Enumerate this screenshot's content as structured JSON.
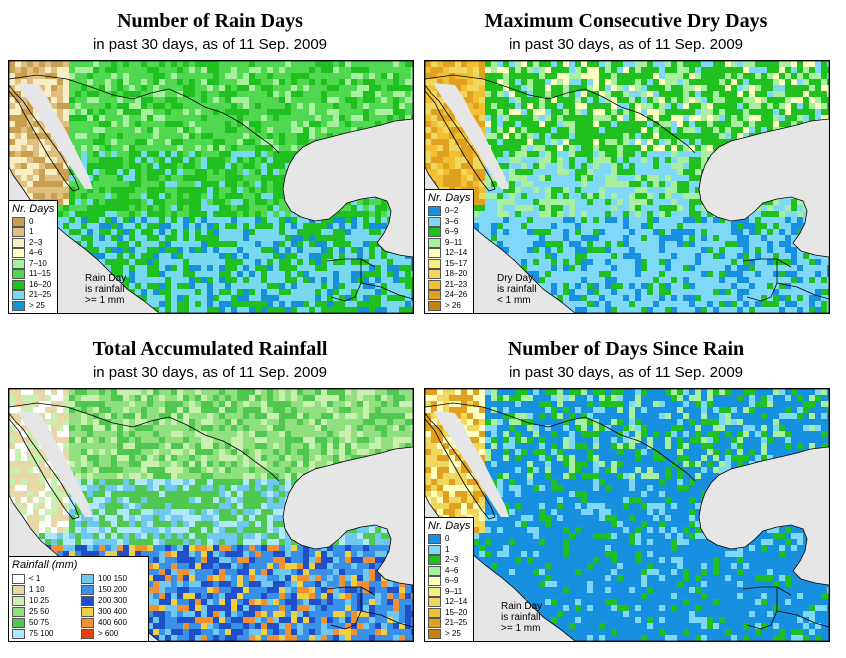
{
  "panels": [
    {
      "title": "Number of Rain Days",
      "subtitle": "in past 30 days, as of  11 Sep. 2009",
      "legend_title": "Nr. Days",
      "legend": [
        {
          "label": "0",
          "color": "#c8a050"
        },
        {
          "label": "1",
          "color": "#e0c080"
        },
        {
          "label": "2–3",
          "color": "#f8eec4"
        },
        {
          "label": "4–6",
          "color": "#ffffc0"
        },
        {
          "label": "7–10",
          "color": "#a8f0a0"
        },
        {
          "label": "11–15",
          "color": "#50d850"
        },
        {
          "label": "16–20",
          "color": "#20c020"
        },
        {
          "label": "21–25",
          "color": "#78d8f0"
        },
        {
          "label": "> 25",
          "color": "#1890d8"
        }
      ],
      "note": [
        "Rain Day",
        "is rainfall",
        ">= 1 mm"
      ]
    },
    {
      "title": "Maximum Consecutive Dry Days",
      "subtitle": "in past 30 days, as of  11 Sep. 2009",
      "legend_title": "Nr. Days",
      "legend": [
        {
          "label": "0–2",
          "color": "#1890e0"
        },
        {
          "label": "3–6",
          "color": "#80d8f8"
        },
        {
          "label": "6–9",
          "color": "#20c020"
        },
        {
          "label": "9–11",
          "color": "#a8f0a0"
        },
        {
          "label": "12–14",
          "color": "#ffffc0"
        },
        {
          "label": "15–17",
          "color": "#f8f080"
        },
        {
          "label": "18–20",
          "color": "#f0d860"
        },
        {
          "label": "21–23",
          "color": "#f0c030"
        },
        {
          "label": "24–26",
          "color": "#e0a020"
        },
        {
          "label": "> 26",
          "color": "#c88010"
        }
      ],
      "note": [
        "Dry Day",
        "is rainfall",
        "< 1 mm"
      ]
    },
    {
      "title": "Total Accumulated Rainfall",
      "subtitle": "in past 30 days, as of  11 Sep. 2009",
      "legend_title": "Rainfall (mm)",
      "legend": [
        {
          "label": "< 1",
          "color": "#ffffff"
        },
        {
          "label": "1    10",
          "color": "#e8d8a8"
        },
        {
          "label": "10    25",
          "color": "#c8f0b0"
        },
        {
          "label": "25    50",
          "color": "#90e080"
        },
        {
          "label": "50    75",
          "color": "#50c850"
        },
        {
          "label": "75   100",
          "color": "#b0e8f8"
        },
        {
          "label": "100  150",
          "color": "#70c8f0"
        },
        {
          "label": "150  200",
          "color": "#3890e8"
        },
        {
          "label": "200  300",
          "color": "#2050c8"
        },
        {
          "label": "300  400",
          "color": "#f0d040"
        },
        {
          "label": "400  600",
          "color": "#f09030"
        },
        {
          "label": "> 600",
          "color": "#e84010"
        }
      ],
      "note": []
    },
    {
      "title": "Number of Days Since Rain",
      "subtitle": "in past 30 days, as of  11 Sep. 2009",
      "legend_title": "Nr. Days",
      "legend": [
        {
          "label": "0",
          "color": "#1890e0"
        },
        {
          "label": "1",
          "color": "#80d8f8"
        },
        {
          "label": "2–3",
          "color": "#20c020"
        },
        {
          "label": "4–6",
          "color": "#a8f0a0"
        },
        {
          "label": "6–9",
          "color": "#ffffc0"
        },
        {
          "label": "9–11",
          "color": "#f8f080"
        },
        {
          "label": "12–14",
          "color": "#f0d860"
        },
        {
          "label": "15–20",
          "color": "#f0c030"
        },
        {
          "label": "21–25",
          "color": "#e0a020"
        },
        {
          "label": "> 25",
          "color": "#c88010"
        }
      ],
      "note": [
        "Rain Day",
        "is rainfall",
        ">= 1 mm"
      ]
    }
  ],
  "colors": {
    "ocean": "#e6e6e6",
    "border": "#000000"
  }
}
